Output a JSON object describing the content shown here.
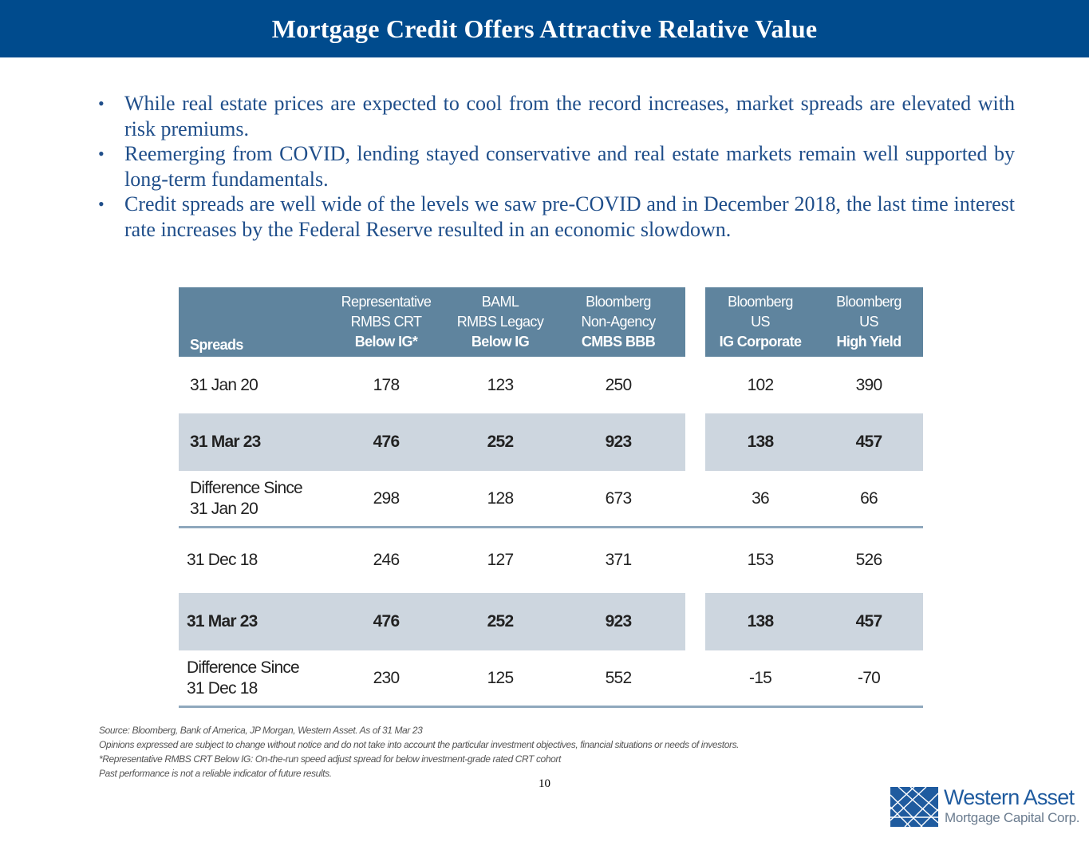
{
  "title": "Mortgage Credit Offers Attractive Relative Value",
  "bullets": [
    "While real estate prices are expected to cool from the record increases, market spreads are elevated with risk premiums.",
    "Reemerging from COVID, lending stayed conservative and real estate markets remain well supported by long-term fundamentals.",
    "Credit spreads are well wide of the levels we saw pre-COVID and in December 2018, the last time interest rate increases by the Federal Reserve resulted in an economic slowdown."
  ],
  "table": {
    "header_label": "Spreads",
    "columns": [
      {
        "line1": "Representative",
        "line2": "RMBS CRT",
        "line3": "Below IG*"
      },
      {
        "line1": "BAML",
        "line2": "RMBS Legacy",
        "line3": "Below IG"
      },
      {
        "line1": "Bloomberg",
        "line2": "Non-Agency",
        "line3": "CMBS BBB"
      },
      {
        "line1": "Bloomberg",
        "line2": "US",
        "line3": "IG Corporate"
      },
      {
        "line1": "Bloomberg",
        "line2": "US",
        "line3": "High Yield"
      }
    ],
    "rows": [
      {
        "label": "31 Jan 20",
        "values": [
          "178",
          "123",
          "250",
          "102",
          "390"
        ]
      },
      {
        "label": "31 Mar 23",
        "values": [
          "476",
          "252",
          "923",
          "138",
          "457"
        ]
      },
      {
        "label": "Difference Since\n31 Jan 20",
        "values": [
          "298",
          "128",
          "673",
          "36",
          "66"
        ]
      },
      {
        "label": "31 Dec 18",
        "values": [
          "246",
          "127",
          "371",
          "153",
          "526"
        ]
      },
      {
        "label": "31 Mar 23",
        "values": [
          "476",
          "252",
          "923",
          "138",
          "457"
        ]
      },
      {
        "label": "Difference Since\n31 Dec 18",
        "values": [
          "230",
          "125",
          "552",
          "-15",
          "-70"
        ]
      }
    ]
  },
  "footnotes": [
    "Source: Bloomberg, Bank of America, JP Morgan, Western Asset. As of 31 Mar 23",
    "Opinions expressed are subject to change without notice and do not take into account the particular investment objectives, financial situations or needs of investors.",
    "*Representative RMBS CRT Below IG: On-the-run speed adjust spread for below investment-grade rated CRT cohort",
    "Past performance is not a reliable indicator of future results."
  ],
  "page_number": "10",
  "logo": {
    "name": "Western Asset",
    "subtitle": "Mortgage Capital Corp.",
    "icon": "western-asset-logo-mark"
  },
  "colors": {
    "title_bar": "#004b8d",
    "bullet_text": "#1f4e8a",
    "table_header": "#5f849e",
    "row_shade": "#cdd6df"
  }
}
